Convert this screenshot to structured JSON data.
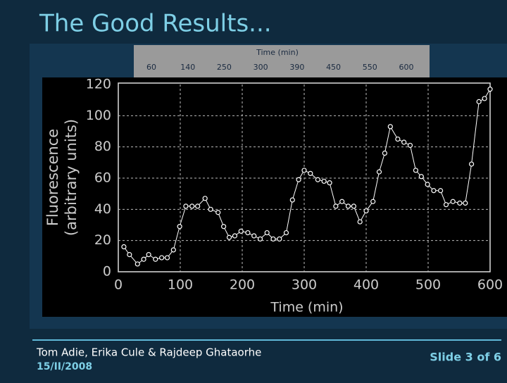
{
  "slide": {
    "title": "The Good Results...",
    "authors": "Tom Adie, Erika Cule & Rajdeep Ghataorhe",
    "date": "15/II/2008",
    "page": "Slide 3 of 6"
  },
  "image_strip": {
    "title": "Time (min)",
    "times": [
      60,
      140,
      250,
      300,
      390,
      450,
      550,
      600
    ]
  },
  "chart_data": {
    "type": "line",
    "x_label": "Time (min)",
    "y_label": [
      "Fluorescence",
      "(arbitrary units)"
    ],
    "x": [
      9,
      18,
      31,
      41,
      49,
      60,
      70,
      79,
      89,
      99,
      109,
      119,
      128,
      140,
      149,
      161,
      170,
      179,
      188,
      198,
      209,
      219,
      229,
      240,
      250,
      260,
      271,
      281,
      291,
      300,
      310,
      322,
      332,
      341,
      351,
      361,
      371,
      380,
      390,
      400,
      411,
      421,
      430,
      439,
      451,
      461,
      471,
      480,
      489,
      499,
      509,
      520,
      529,
      540,
      551,
      560,
      570,
      582,
      591,
      600
    ],
    "values": [
      16,
      11,
      5,
      8,
      11,
      8,
      9,
      9,
      14,
      29,
      42,
      42,
      42,
      47,
      40,
      38,
      29,
      22,
      23,
      26,
      25,
      23,
      21,
      25,
      21,
      21,
      25,
      46,
      59,
      65,
      63,
      59,
      58,
      57,
      42,
      45,
      42,
      42,
      32,
      39,
      45,
      64,
      76,
      93,
      85,
      83,
      81,
      65,
      61,
      56,
      52,
      52,
      43,
      45,
      44,
      44,
      69,
      109,
      111,
      117
    ],
    "color": "#ffffff",
    "xlim": [
      0,
      600
    ],
    "xticks": [
      0,
      100,
      200,
      300,
      400,
      500,
      600
    ],
    "ylim": [
      0,
      120
    ],
    "yticks": [
      0,
      20,
      40,
      60,
      80,
      100,
      120
    ],
    "grid": true
  }
}
